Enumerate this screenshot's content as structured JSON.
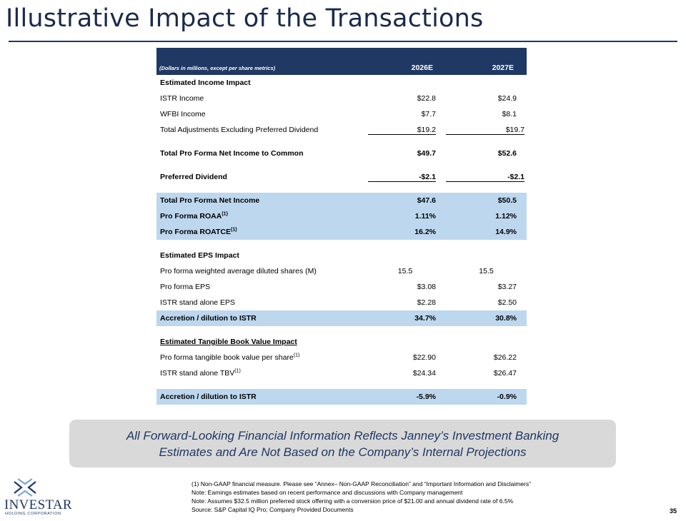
{
  "title": "Illustrative Impact of the Transactions",
  "table": {
    "header": {
      "label": "(Dollars in millions, except per share metrics)",
      "col1": "2026E",
      "col2": "2027E"
    },
    "income_section": "Estimated Income Impact",
    "istr_income": {
      "label": "ISTR Income",
      "v1": "$22.8",
      "v2": "$24.9"
    },
    "wfbi_income": {
      "label": "WFBI Income",
      "v1": "$7.7",
      "v2": "$8.1"
    },
    "total_adjustments": {
      "label": "Total Adjustments Excluding Preferred Dividend",
      "v1": "$19.2",
      "v2": "$19.7"
    },
    "net_income_common": {
      "label": "Total Pro Forma Net Income to Common",
      "v1": "$49.7",
      "v2": "$52.6"
    },
    "preferred_dividend": {
      "label": "Preferred Dividend",
      "v1": "-$2.1",
      "v2": "-$2.1"
    },
    "total_net_income": {
      "label": "Total Pro Forma Net Income",
      "v1": "$47.6",
      "v2": "$50.5"
    },
    "roaa": {
      "label": "Pro Forma ROAA",
      "sup": "(1)",
      "v1": "1.11%",
      "v2": "1.12%"
    },
    "roatce": {
      "label": "Pro Forma ROATCE",
      "sup": "(1)",
      "v1": "16.2%",
      "v2": "14.9%"
    },
    "eps_section": "Estimated EPS Impact",
    "diluted_shares": {
      "label": "Pro forma weighted average diluted shares (M)",
      "v1": "15.5",
      "v2": "15.5"
    },
    "pro_forma_eps": {
      "label": "Pro forma EPS",
      "v1": "$3.08",
      "v2": "$3.27"
    },
    "standalone_eps": {
      "label": "ISTR stand alone EPS",
      "v1": "$2.28",
      "v2": "$2.50"
    },
    "eps_accretion": {
      "label": "Accretion / dilution to ISTR",
      "v1": "34.7%",
      "v2": "30.8%"
    },
    "tbv_section": "Estimated Tangible Book Value Impact",
    "pro_forma_tbv": {
      "label": "Pro forma tangible book value per share",
      "sup": "(1)",
      "v1": "$22.90",
      "v2": "$26.22"
    },
    "standalone_tbv": {
      "label": "ISTR stand alone TBV",
      "sup": "(1)",
      "v1": "$24.34",
      "v2": "$26.47"
    },
    "tbv_accretion": {
      "label": "Accretion / dilution to ISTR",
      "v1": "-5.9%",
      "v2": "-0.9%"
    }
  },
  "disclaimer": {
    "line1": "All Forward-Looking Financial Information Reflects Janney’s Investment Banking",
    "line2": "Estimates and Are Not Based on the Company’s Internal Projections"
  },
  "footnotes": [
    "(1) Non-GAAP financial measure. Please see “Annex– Non-GAAP Reconciliation” and “Important Information and Disclaimers”",
    "Note: Earnings estimates based on recent performance and discussions with Company management",
    "Note: Assumes $32.5 million preferred stock offering with a conversion price of $21.00 and annual dividend rate of 6.5%",
    "Source: S&P Capital IQ Pro; Company Provided Documents"
  ],
  "page_number": "35",
  "logo": {
    "word": "INVESTAR",
    "subtitle": "HOLDING CORPORATION"
  },
  "colors": {
    "navy": "#1f3864",
    "highlight": "#bdd7ee",
    "disclaimer_bg": "#d9d9d9"
  }
}
